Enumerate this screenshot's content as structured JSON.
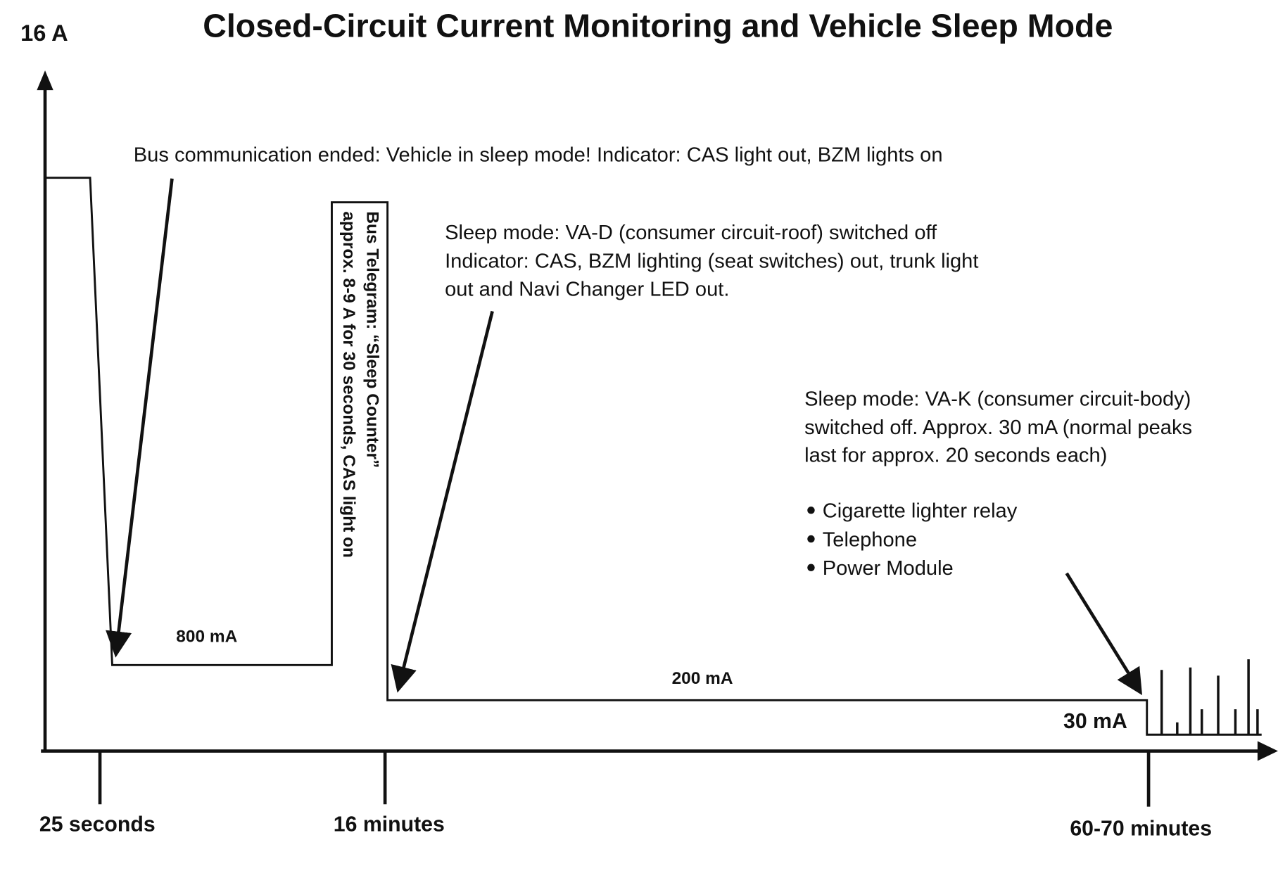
{
  "title": "Closed-Circuit Current Monitoring and Vehicle Sleep Mode",
  "y_axis_max_label": "16 A",
  "time_labels": [
    "25 seconds",
    "16 minutes",
    "60-70 minutes"
  ],
  "level_labels": {
    "l800": "800 mA",
    "l200": "200 mA",
    "l30": "30 mA"
  },
  "annotations": {
    "bus_end": "Bus communication ended: Vehicle in sleep mode!  Indicator: CAS light out, BZM lights on",
    "telegram": [
      "Bus Telegram: “Sleep Counter”",
      "approx. 8-9 A for 30 seconds, CAS light on"
    ],
    "vad": [
      "Sleep mode: VA-D (consumer circuit-roof) switched off",
      "Indicator: CAS, BZM lighting (seat switches) out, trunk light",
      "out and Navi Changer LED out."
    ],
    "vak": [
      "Sleep mode: VA-K (consumer circuit-body)",
      "switched off.  Approx. 30 mA (normal peaks",
      "last for approx. 20 seconds each)"
    ],
    "bullets": [
      "Cigarette lighter relay",
      "Telephone",
      "Power Module"
    ]
  },
  "chart_data": {
    "type": "line",
    "title": "Closed-Circuit Current Monitoring and Vehicle Sleep Mode",
    "ylabel": "16 A",
    "x_ticks": [
      "25 seconds",
      "16 minutes",
      "60-70 minutes"
    ],
    "levels_mA": [
      800,
      200,
      30
    ],
    "telegram_peak_A": "8-9"
  }
}
